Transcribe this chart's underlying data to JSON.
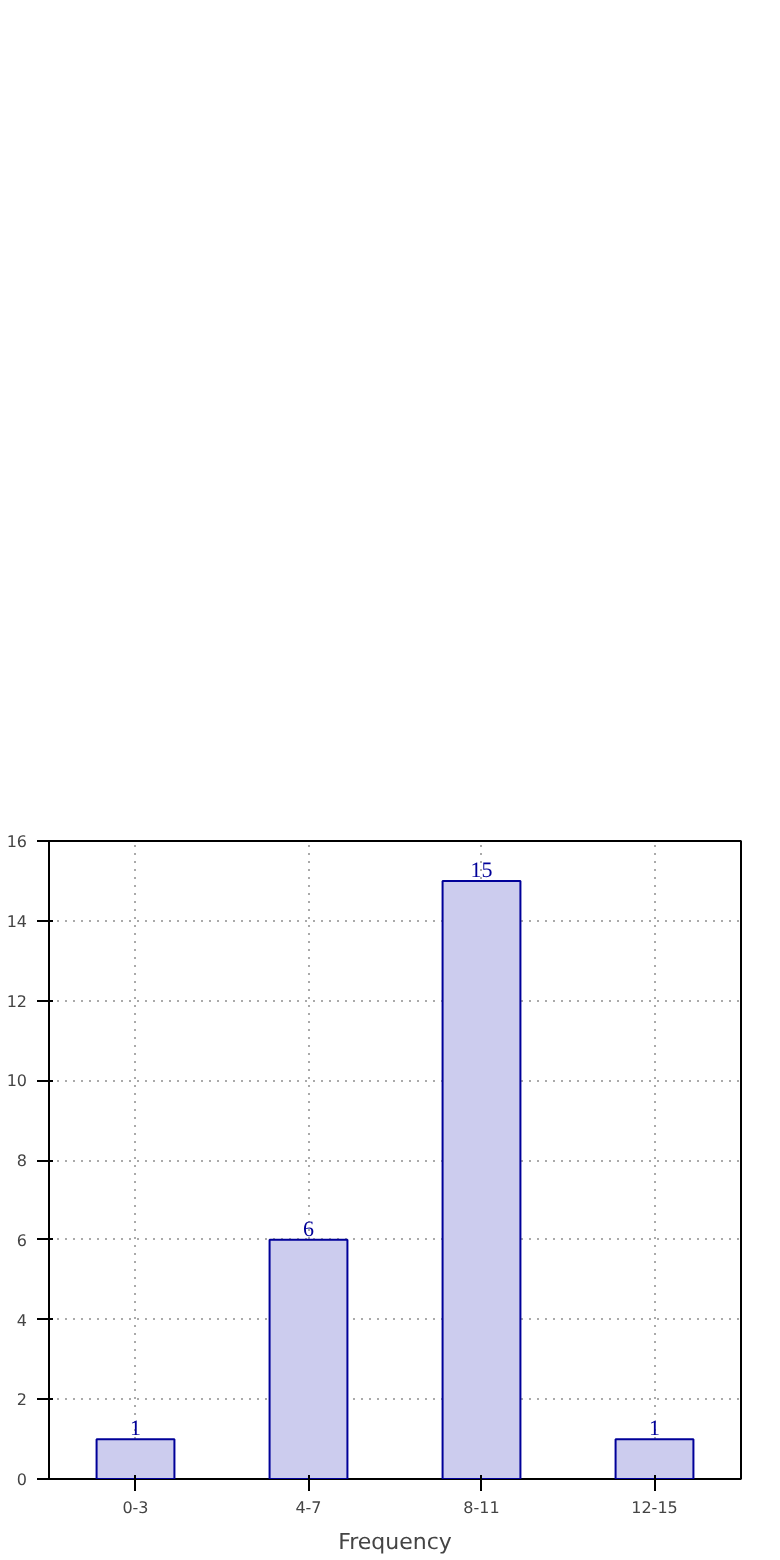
{
  "chart_data": {
    "type": "bar",
    "xlabel": "Frequency",
    "categories": [
      "0-3",
      "4-7",
      "8-11",
      "12-15"
    ],
    "values": [
      1,
      6,
      15,
      1
    ],
    "color": "#ccccee",
    "ylim": [
      0,
      16
    ],
    "yticks": [
      0,
      2,
      4,
      6,
      8,
      10,
      12,
      14,
      16
    ],
    "grid": true,
    "data_labels": true
  }
}
